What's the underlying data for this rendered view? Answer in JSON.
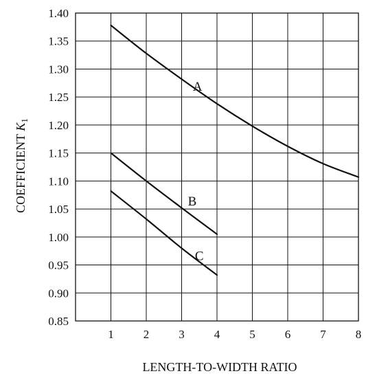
{
  "chart_data": {
    "type": "line",
    "xlabel": "LENGTH-TO-WIDTH RATIO",
    "ylabel_main": "COEFFICIENT ",
    "ylabel_symbol": "K",
    "ylabel_subscript": "1",
    "xlim": [
      0,
      8
    ],
    "ylim": [
      0.85,
      1.4
    ],
    "x_ticks": [
      1,
      2,
      3,
      4,
      5,
      6,
      7,
      8
    ],
    "x_tick_labels": [
      "1",
      "2",
      "3",
      "4",
      "5",
      "6",
      "7",
      "8"
    ],
    "y_ticks": [
      0.85,
      0.9,
      0.95,
      1.0,
      1.05,
      1.1,
      1.15,
      1.2,
      1.25,
      1.3,
      1.35,
      1.4
    ],
    "y_tick_labels": [
      "0.85",
      "0.90",
      "0.95",
      "1.00",
      "1.05",
      "1.10",
      "1.15",
      "1.20",
      "1.25",
      "1.30",
      "1.35",
      "1.40"
    ],
    "grid": true,
    "series": [
      {
        "name": "A",
        "x": [
          1,
          2,
          3,
          4,
          5,
          6,
          7,
          8
        ],
        "y": [
          1.378,
          1.328,
          1.282,
          1.238,
          1.198,
          1.162,
          1.131,
          1.107
        ],
        "label_at": [
          3.45,
          1.27
        ]
      },
      {
        "name": "B",
        "x": [
          1,
          2,
          3,
          4
        ],
        "y": [
          1.15,
          1.1,
          1.052,
          1.005
        ],
        "label_at": [
          3.3,
          1.065
        ]
      },
      {
        "name": "C",
        "x": [
          1,
          2,
          3,
          4
        ],
        "y": [
          1.082,
          1.032,
          0.98,
          0.932
        ],
        "label_at": [
          3.5,
          0.967
        ]
      }
    ]
  }
}
